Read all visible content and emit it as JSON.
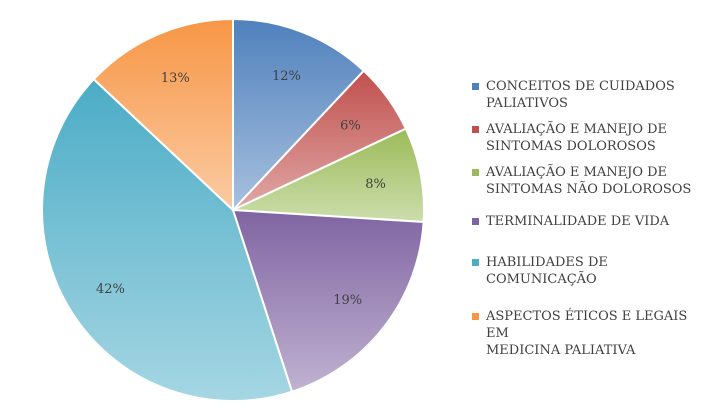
{
  "chart_data": {
    "type": "pie",
    "title": "",
    "slices": [
      {
        "label": "CONCEITOS DE CUIDADOS\nPALIATIVOS",
        "value": 12,
        "data_label": "12%",
        "color": "#4f81bd"
      },
      {
        "label": "AVALIAÇÃO E MANEJO DE\nSINTOMAS DOLOROSOS",
        "value": 6,
        "data_label": "6%",
        "color": "#c0504d"
      },
      {
        "label": "AVALIAÇÃO E MANEJO DE\nSINTOMAS NÃO DOLOROSOS",
        "value": 8,
        "data_label": "8%",
        "color": "#9bbb59"
      },
      {
        "label": "TERMINALIDADE DE VIDA",
        "value": 19,
        "data_label": "19%",
        "color": "#8064a2"
      },
      {
        "label": "HABILIDADES DE COMUNICAÇÃO",
        "value": 42,
        "data_label": "42%",
        "color": "#4bacc6"
      },
      {
        "label": "ASPECTOS ÉTICOS E LEGAIS EM\nMEDICINA PALIATIVA",
        "value": 13,
        "data_label": "13%",
        "color": "#f79646"
      }
    ],
    "legend_position": "right"
  }
}
